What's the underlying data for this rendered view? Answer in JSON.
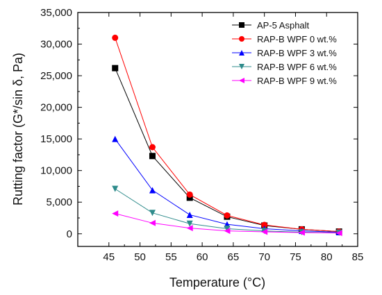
{
  "chart_data": {
    "type": "line",
    "title": "",
    "xlabel": "Temperature (°C)",
    "ylabel": "Rutting factor (G*/sin δ, Pa)",
    "xlim": [
      40,
      85
    ],
    "ylim": [
      -2000,
      35000
    ],
    "xticks": [
      45,
      50,
      55,
      60,
      65,
      70,
      75,
      80,
      85
    ],
    "yticks": [
      0,
      5000,
      10000,
      15000,
      20000,
      25000,
      30000,
      35000
    ],
    "xtick_labels": [
      "45",
      "50",
      "55",
      "60",
      "65",
      "70",
      "75",
      "80",
      "85"
    ],
    "ytick_labels": [
      "0",
      "5,000",
      "10,000",
      "15,000",
      "20,000",
      "25,000",
      "30,000",
      "35,000"
    ],
    "grid": false,
    "legend_position": "top-right",
    "x": [
      46,
      52,
      58,
      64,
      70,
      76,
      82
    ],
    "series": [
      {
        "name": "AP-5 Asphalt",
        "color": "#000000",
        "marker": "square",
        "values": [
          26200,
          12300,
          5700,
          2700,
          1300,
          700,
          350
        ]
      },
      {
        "name": "RAP-B WPF 0 wt.%",
        "color": "#ff0000",
        "marker": "circle",
        "values": [
          31000,
          13700,
          6200,
          2900,
          1400,
          700,
          350
        ]
      },
      {
        "name": "RAP-B WPF 3 wt.%",
        "color": "#0000ff",
        "marker": "triangle-up",
        "values": [
          15000,
          6900,
          3000,
          1500,
          800,
          450,
          250
        ]
      },
      {
        "name": "RAP-B WPF 6 wt.%",
        "color": "#2e8b8b",
        "marker": "triangle-down",
        "values": [
          7100,
          3300,
          1600,
          800,
          450,
          250,
          150
        ]
      },
      {
        "name": "RAP-B WPF 9 wt.%",
        "color": "#ff00ff",
        "marker": "triangle-left",
        "values": [
          3200,
          1700,
          900,
          450,
          300,
          180,
          120
        ]
      }
    ]
  }
}
